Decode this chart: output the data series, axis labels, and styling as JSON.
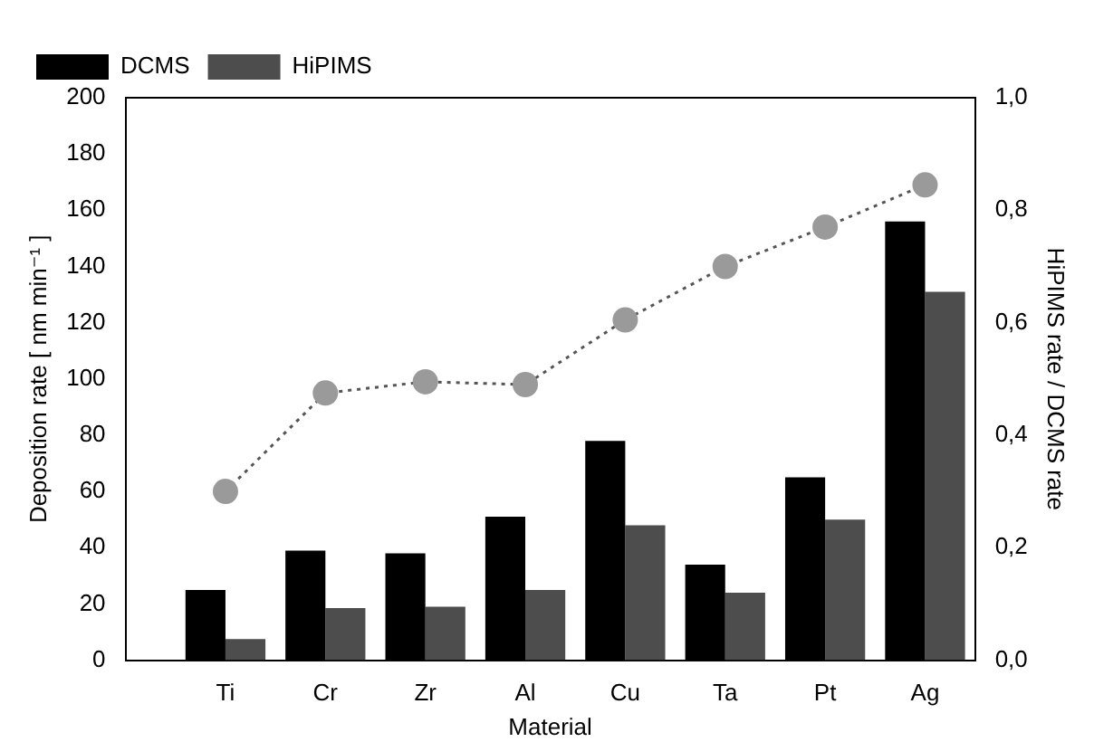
{
  "chart_data": {
    "type": "bar",
    "xlabel": "Material",
    "ylabel": "Deposition rate [ nm min⁻¹ ]",
    "y2label": "HiPIMS rate / DCMS rate",
    "categories": [
      "Ti",
      "Cr",
      "Zr",
      "Al",
      "Cu",
      "Ta",
      "Pt",
      "Ag"
    ],
    "series": [
      {
        "name": "DCMS",
        "color": "#000000",
        "values": [
          25,
          39,
          38,
          51,
          78,
          34,
          65,
          156
        ]
      },
      {
        "name": "HiPIMS",
        "color": "#4d4d4d",
        "values": [
          7.5,
          18.5,
          19,
          25,
          48,
          24,
          50,
          131
        ]
      },
      {
        "type": "line",
        "axis": "y2",
        "color": "#9a9a9a",
        "marker": "circle",
        "line_style": "dotted",
        "values": [
          0.3,
          0.475,
          0.495,
          0.49,
          0.605,
          0.7,
          0.77,
          0.845
        ]
      }
    ],
    "ylim": [
      0,
      200
    ],
    "yticks": [
      0,
      20,
      40,
      60,
      80,
      100,
      120,
      140,
      160,
      180,
      200
    ],
    "y2lim": [
      0,
      1
    ],
    "y2ticks": [
      {
        "value": 0,
        "label": "0,0"
      },
      {
        "value": 0.2,
        "label": "0,2"
      },
      {
        "value": 0.4,
        "label": "0,4"
      },
      {
        "value": 0.6,
        "label": "0,6"
      },
      {
        "value": 0.8,
        "label": "0,8"
      },
      {
        "value": 1,
        "label": "1,0"
      }
    ],
    "grid": false,
    "legend": "top left"
  }
}
